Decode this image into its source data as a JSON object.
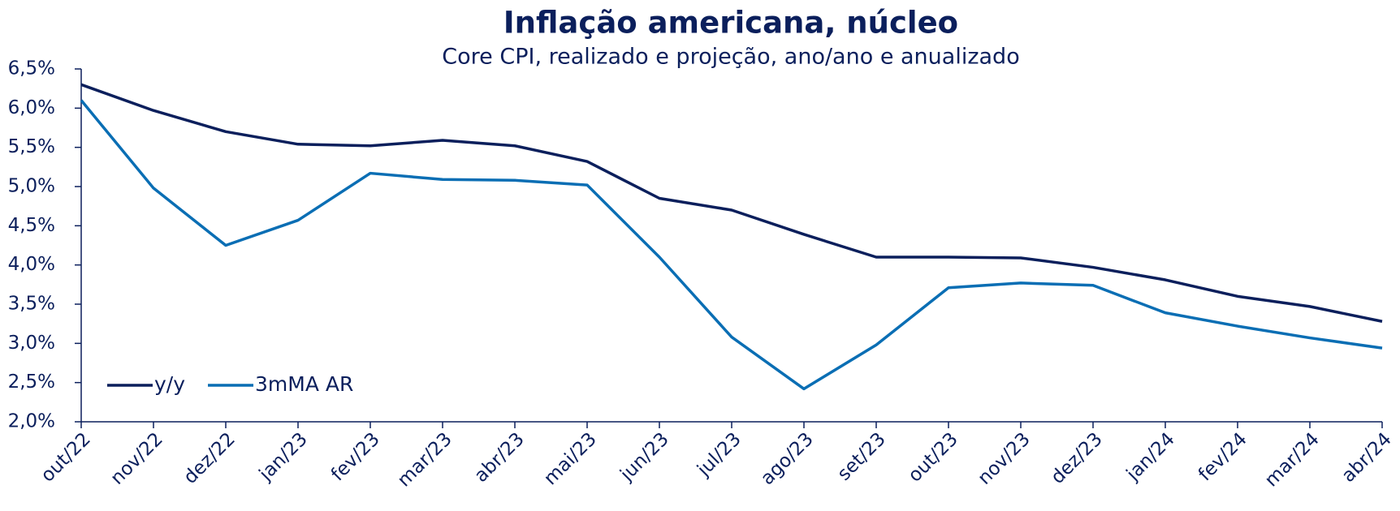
{
  "chart_data": {
    "type": "line",
    "title": "Inflação americana, núcleo",
    "subtitle": "Core CPI, realizado e projeção, ano/ano e anualizado",
    "categories": [
      "out/22",
      "nov/22",
      "dez/22",
      "jan/23",
      "fev/23",
      "mar/23",
      "abr/23",
      "mai/23",
      "jun/23",
      "jul/23",
      "ago/23",
      "set/23",
      "out/23",
      "nov/23",
      "dez/23",
      "jan/24",
      "fev/24",
      "mar/24",
      "abr/24"
    ],
    "series": [
      {
        "name": "y/y",
        "color": "#0b1f5c",
        "values": [
          6.3,
          5.97,
          5.7,
          5.54,
          5.52,
          5.59,
          5.52,
          5.32,
          4.85,
          4.7,
          4.39,
          4.1,
          4.1,
          4.09,
          3.97,
          3.81,
          3.6,
          3.47,
          3.28
        ]
      },
      {
        "name": "3mMA AR",
        "color": "#0a6eb4",
        "values": [
          6.1,
          4.98,
          4.25,
          4.57,
          5.17,
          5.09,
          5.08,
          5.02,
          4.1,
          3.08,
          2.42,
          2.98,
          3.71,
          3.77,
          3.74,
          3.39,
          3.22,
          3.07,
          2.94
        ]
      }
    ],
    "ylim": [
      2.0,
      6.5
    ],
    "yticks": [
      {
        "value": 2.0,
        "label": "2,0%"
      },
      {
        "value": 2.5,
        "label": "2,5%"
      },
      {
        "value": 3.0,
        "label": "3,0%"
      },
      {
        "value": 3.5,
        "label": "3,5%"
      },
      {
        "value": 4.0,
        "label": "4,0%"
      },
      {
        "value": 4.5,
        "label": "4,5%"
      },
      {
        "value": 5.0,
        "label": "5,0%"
      },
      {
        "value": 5.5,
        "label": "5,5%"
      },
      {
        "value": 6.0,
        "label": "6,0%"
      },
      {
        "value": 6.5,
        "label": "6,5%"
      }
    ],
    "grid": false,
    "legend": "lower left"
  }
}
